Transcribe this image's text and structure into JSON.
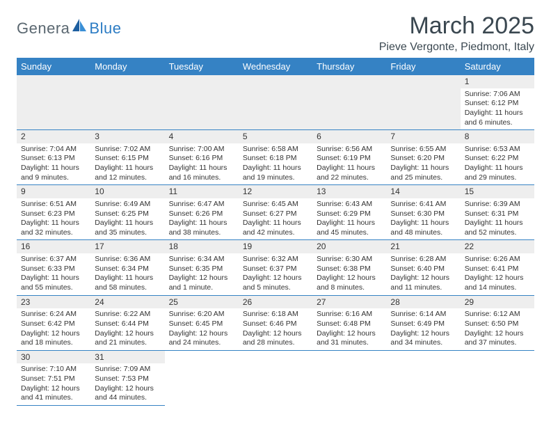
{
  "logo": {
    "part1": "Genera",
    "part2": "Blue"
  },
  "title": "March 2025",
  "location": "Pieve Vergonte, Piedmont, Italy",
  "colors": {
    "header_bg": "#3582c4",
    "header_text": "#ffffff",
    "daynum_bg": "#eeeeee",
    "border": "#3582c4",
    "logo_gray": "#5a6770",
    "logo_blue": "#2c7cc4",
    "title_color": "#3a4750"
  },
  "weekdays": [
    "Sunday",
    "Monday",
    "Tuesday",
    "Wednesday",
    "Thursday",
    "Friday",
    "Saturday"
  ],
  "days": {
    "1": {
      "sunrise": "7:06 AM",
      "sunset": "6:12 PM",
      "daylight": "11 hours and 6 minutes."
    },
    "2": {
      "sunrise": "7:04 AM",
      "sunset": "6:13 PM",
      "daylight": "11 hours and 9 minutes."
    },
    "3": {
      "sunrise": "7:02 AM",
      "sunset": "6:15 PM",
      "daylight": "11 hours and 12 minutes."
    },
    "4": {
      "sunrise": "7:00 AM",
      "sunset": "6:16 PM",
      "daylight": "11 hours and 16 minutes."
    },
    "5": {
      "sunrise": "6:58 AM",
      "sunset": "6:18 PM",
      "daylight": "11 hours and 19 minutes."
    },
    "6": {
      "sunrise": "6:56 AM",
      "sunset": "6:19 PM",
      "daylight": "11 hours and 22 minutes."
    },
    "7": {
      "sunrise": "6:55 AM",
      "sunset": "6:20 PM",
      "daylight": "11 hours and 25 minutes."
    },
    "8": {
      "sunrise": "6:53 AM",
      "sunset": "6:22 PM",
      "daylight": "11 hours and 29 minutes."
    },
    "9": {
      "sunrise": "6:51 AM",
      "sunset": "6:23 PM",
      "daylight": "11 hours and 32 minutes."
    },
    "10": {
      "sunrise": "6:49 AM",
      "sunset": "6:25 PM",
      "daylight": "11 hours and 35 minutes."
    },
    "11": {
      "sunrise": "6:47 AM",
      "sunset": "6:26 PM",
      "daylight": "11 hours and 38 minutes."
    },
    "12": {
      "sunrise": "6:45 AM",
      "sunset": "6:27 PM",
      "daylight": "11 hours and 42 minutes."
    },
    "13": {
      "sunrise": "6:43 AM",
      "sunset": "6:29 PM",
      "daylight": "11 hours and 45 minutes."
    },
    "14": {
      "sunrise": "6:41 AM",
      "sunset": "6:30 PM",
      "daylight": "11 hours and 48 minutes."
    },
    "15": {
      "sunrise": "6:39 AM",
      "sunset": "6:31 PM",
      "daylight": "11 hours and 52 minutes."
    },
    "16": {
      "sunrise": "6:37 AM",
      "sunset": "6:33 PM",
      "daylight": "11 hours and 55 minutes."
    },
    "17": {
      "sunrise": "6:36 AM",
      "sunset": "6:34 PM",
      "daylight": "11 hours and 58 minutes."
    },
    "18": {
      "sunrise": "6:34 AM",
      "sunset": "6:35 PM",
      "daylight": "12 hours and 1 minute."
    },
    "19": {
      "sunrise": "6:32 AM",
      "sunset": "6:37 PM",
      "daylight": "12 hours and 5 minutes."
    },
    "20": {
      "sunrise": "6:30 AM",
      "sunset": "6:38 PM",
      "daylight": "12 hours and 8 minutes."
    },
    "21": {
      "sunrise": "6:28 AM",
      "sunset": "6:40 PM",
      "daylight": "12 hours and 11 minutes."
    },
    "22": {
      "sunrise": "6:26 AM",
      "sunset": "6:41 PM",
      "daylight": "12 hours and 14 minutes."
    },
    "23": {
      "sunrise": "6:24 AM",
      "sunset": "6:42 PM",
      "daylight": "12 hours and 18 minutes."
    },
    "24": {
      "sunrise": "6:22 AM",
      "sunset": "6:44 PM",
      "daylight": "12 hours and 21 minutes."
    },
    "25": {
      "sunrise": "6:20 AM",
      "sunset": "6:45 PM",
      "daylight": "12 hours and 24 minutes."
    },
    "26": {
      "sunrise": "6:18 AM",
      "sunset": "6:46 PM",
      "daylight": "12 hours and 28 minutes."
    },
    "27": {
      "sunrise": "6:16 AM",
      "sunset": "6:48 PM",
      "daylight": "12 hours and 31 minutes."
    },
    "28": {
      "sunrise": "6:14 AM",
      "sunset": "6:49 PM",
      "daylight": "12 hours and 34 minutes."
    },
    "29": {
      "sunrise": "6:12 AM",
      "sunset": "6:50 PM",
      "daylight": "12 hours and 37 minutes."
    },
    "30": {
      "sunrise": "7:10 AM",
      "sunset": "7:51 PM",
      "daylight": "12 hours and 41 minutes."
    },
    "31": {
      "sunrise": "7:09 AM",
      "sunset": "7:53 PM",
      "daylight": "12 hours and 44 minutes."
    }
  },
  "labels": {
    "sunrise_prefix": "Sunrise: ",
    "sunset_prefix": "Sunset: ",
    "daylight_prefix": "Daylight: "
  },
  "grid": {
    "first_weekday_index": 6,
    "days_in_month": 31,
    "rows": 6,
    "cols": 7
  }
}
